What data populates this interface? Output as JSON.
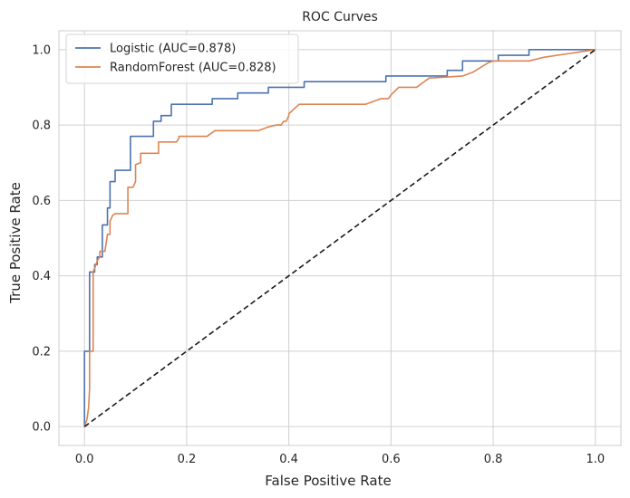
{
  "chart_data": {
    "type": "line",
    "title": "ROC Curves",
    "xlabel": "False Positive Rate",
    "ylabel": "True Positive Rate",
    "xlim": [
      -0.05,
      1.05
    ],
    "ylim": [
      -0.05,
      1.05
    ],
    "xticks": [
      "0.0",
      "0.2",
      "0.4",
      "0.6",
      "0.8",
      "1.0"
    ],
    "yticks": [
      "0.0",
      "0.2",
      "0.4",
      "0.6",
      "0.8",
      "1.0"
    ],
    "grid": true,
    "legend_position": "top-left",
    "series": [
      {
        "name": "Logistic (AUC=0.878)",
        "color": "#4c72b0",
        "x": [
          0.0,
          0.0,
          0.0,
          0.0,
          0.01,
          0.01,
          0.01,
          0.01,
          0.02,
          0.02,
          0.025,
          0.025,
          0.03,
          0.03,
          0.035,
          0.035,
          0.04,
          0.04,
          0.045,
          0.045,
          0.05,
          0.05,
          0.06,
          0.06,
          0.07,
          0.07,
          0.085,
          0.085,
          0.09,
          0.09,
          0.135,
          0.135,
          0.15,
          0.15,
          0.17,
          0.17,
          0.25,
          0.25,
          0.3,
          0.3,
          0.36,
          0.36,
          0.43,
          0.43,
          0.59,
          0.59,
          0.71,
          0.71,
          0.74,
          0.74,
          0.81,
          0.81,
          0.87,
          0.87,
          1.0
        ],
        "y": [
          0.0,
          0.07,
          0.07,
          0.2,
          0.2,
          0.3,
          0.3,
          0.41,
          0.41,
          0.43,
          0.43,
          0.45,
          0.45,
          0.45,
          0.45,
          0.535,
          0.535,
          0.535,
          0.535,
          0.58,
          0.58,
          0.65,
          0.65,
          0.68,
          0.68,
          0.68,
          0.68,
          0.68,
          0.68,
          0.77,
          0.77,
          0.81,
          0.81,
          0.825,
          0.825,
          0.855,
          0.855,
          0.87,
          0.87,
          0.885,
          0.885,
          0.9,
          0.9,
          0.915,
          0.915,
          0.93,
          0.93,
          0.945,
          0.945,
          0.97,
          0.97,
          0.985,
          0.985,
          1.0,
          1.0
        ]
      },
      {
        "name": "RandomForest (AUC=0.828)",
        "color": "#dd8452",
        "x": [
          0.0,
          0.005,
          0.008,
          0.01,
          0.01,
          0.017,
          0.017,
          0.02,
          0.025,
          0.03,
          0.03,
          0.035,
          0.04,
          0.045,
          0.05,
          0.05,
          0.055,
          0.06,
          0.07,
          0.075,
          0.085,
          0.085,
          0.095,
          0.1,
          0.1,
          0.11,
          0.11,
          0.145,
          0.145,
          0.18,
          0.185,
          0.185,
          0.24,
          0.25,
          0.255,
          0.34,
          0.36,
          0.375,
          0.385,
          0.39,
          0.395,
          0.4,
          0.4,
          0.42,
          0.43,
          0.55,
          0.58,
          0.595,
          0.6,
          0.615,
          0.615,
          0.65,
          0.66,
          0.675,
          0.68,
          0.74,
          0.76,
          0.79,
          0.8,
          0.81,
          0.87,
          0.9,
          0.95,
          1.0
        ],
        "y": [
          0.0,
          0.02,
          0.05,
          0.1,
          0.2,
          0.2,
          0.41,
          0.42,
          0.44,
          0.45,
          0.465,
          0.465,
          0.465,
          0.51,
          0.51,
          0.545,
          0.56,
          0.565,
          0.565,
          0.565,
          0.565,
          0.635,
          0.635,
          0.65,
          0.695,
          0.7,
          0.725,
          0.725,
          0.755,
          0.755,
          0.765,
          0.77,
          0.77,
          0.78,
          0.785,
          0.785,
          0.795,
          0.8,
          0.8,
          0.81,
          0.81,
          0.825,
          0.83,
          0.855,
          0.855,
          0.855,
          0.87,
          0.87,
          0.88,
          0.9,
          0.9,
          0.9,
          0.91,
          0.925,
          0.925,
          0.93,
          0.94,
          0.965,
          0.97,
          0.97,
          0.97,
          0.98,
          0.99,
          1.0
        ]
      },
      {
        "name": "",
        "color": "#1a1a1a",
        "dashed": true,
        "x": [
          0.0,
          1.0
        ],
        "y": [
          0.0,
          1.0
        ]
      }
    ]
  }
}
